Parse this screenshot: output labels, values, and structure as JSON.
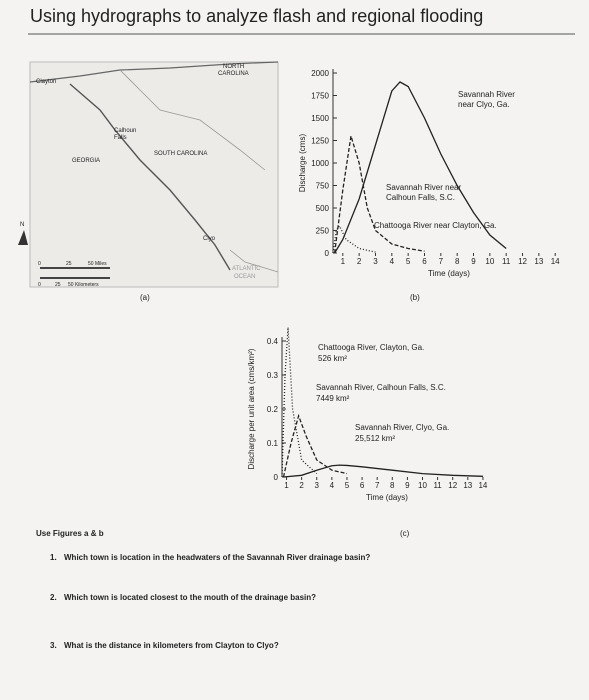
{
  "header": {
    "title": "Using hydrographs to analyze flash and regional flooding"
  },
  "figures": {
    "a": {
      "caption": "(a)",
      "labels": {
        "north_carolina": [
          "NORTH",
          "CAROLINA"
        ],
        "clayton": "Clayton",
        "calhoun": [
          "Calhoun",
          "Falls"
        ],
        "south_carolina": "SOUTH CAROLINA",
        "georgia": "GEORGIA",
        "north": "N",
        "clyo": "Clyo",
        "ocean": [
          "ATLANTIC",
          "OCEAN"
        ],
        "scale_miles": [
          "0",
          "25",
          "50 Miles"
        ],
        "scale_km": [
          "0",
          "25",
          "50 Kilometers"
        ]
      }
    },
    "b": {
      "caption": "(b)",
      "ylabel": "Discharge (cms)",
      "xlabel": "Time (days)",
      "xlim": [
        0.4,
        14.6
      ],
      "ylim": [
        0,
        2000
      ],
      "xticks": [
        1,
        2,
        3,
        4,
        5,
        6,
        7,
        8,
        9,
        10,
        11,
        12,
        13,
        14
      ],
      "yticks": [
        0,
        250,
        500,
        750,
        1000,
        1250,
        1500,
        1750,
        2000
      ],
      "series": [
        {
          "name": [
            "Savannah River",
            "near Clyo, Ga."
          ],
          "style": "solid",
          "x": [
            0.5,
            1,
            2,
            3,
            4,
            4.5,
            5,
            6,
            7,
            8,
            9,
            10,
            11
          ],
          "values": [
            0,
            150,
            600,
            1200,
            1800,
            1900,
            1850,
            1500,
            1100,
            750,
            450,
            200,
            50
          ]
        },
        {
          "name": [
            "Savannah River near",
            "Calhoun Falls, S.C."
          ],
          "style": "dashed",
          "x": [
            0.5,
            1,
            1.5,
            2,
            2.5,
            3,
            4,
            5,
            6
          ],
          "values": [
            0,
            700,
            1300,
            1000,
            500,
            250,
            100,
            50,
            20
          ]
        },
        {
          "name": [
            "Chattooga River near Clayton, Ga."
          ],
          "style": "dotted",
          "x": [
            0.4,
            0.6,
            0.8,
            1.2,
            2,
            3
          ],
          "values": [
            0,
            250,
            300,
            150,
            50,
            10
          ]
        }
      ]
    },
    "c": {
      "caption": "(c)",
      "ylabel": "Discharge per unit area (cms/km²)",
      "xlabel": "Time (days)",
      "xlim": [
        0.7,
        14.6
      ],
      "ylim": [
        0,
        0.4
      ],
      "xticks": [
        1,
        2,
        3,
        4,
        5,
        6,
        7,
        8,
        9,
        10,
        11,
        12,
        13,
        14
      ],
      "yticks": [
        0,
        0.1,
        0.2,
        0.3,
        0.4
      ],
      "series": [
        {
          "name": [
            "Chattooga River, Clayton, Ga.",
            "526 km²"
          ],
          "style": "dotted",
          "x": [
            0.7,
            0.9,
            1.1,
            1.4,
            2,
            3
          ],
          "values": [
            0,
            0.3,
            0.44,
            0.2,
            0.05,
            0.01
          ]
        },
        {
          "name": [
            "Savannah River, Calhoun Falls, S.C.",
            "7449 km²"
          ],
          "style": "dashed",
          "x": [
            0.8,
            1.3,
            1.8,
            2.3,
            3,
            4,
            5
          ],
          "values": [
            0,
            0.1,
            0.18,
            0.12,
            0.05,
            0.02,
            0.01
          ]
        },
        {
          "name": [
            "Savannah River, Clyo, Ga.",
            "25,512 km²"
          ],
          "style": "solid",
          "x": [
            0.8,
            2,
            3,
            4,
            4.5,
            5,
            6,
            8,
            10,
            12,
            14
          ],
          "values": [
            0,
            0.005,
            0.02,
            0.033,
            0.035,
            0.034,
            0.03,
            0.02,
            0.01,
            0.005,
            0.002
          ]
        }
      ]
    }
  },
  "instructions": "Use Figures a & b",
  "questions": [
    {
      "number": "1.",
      "text": "Which town is location in the headwaters of the Savannah River drainage basin?"
    },
    {
      "number": "2.",
      "text": "Which town is located closest to the mouth of the drainage basin?"
    },
    {
      "number": "3.",
      "text": "What is the distance in kilometers from Clayton to Clyo?"
    }
  ]
}
